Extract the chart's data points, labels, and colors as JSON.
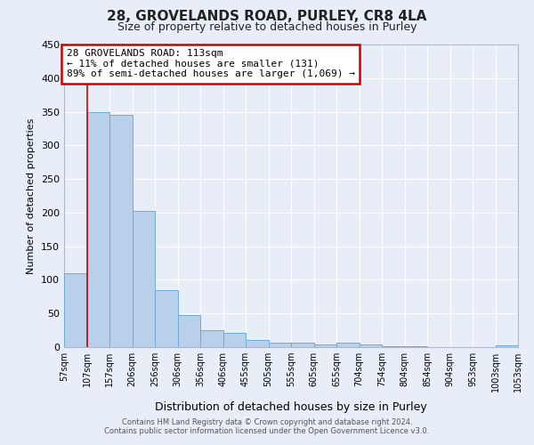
{
  "title": "28, GROVELANDS ROAD, PURLEY, CR8 4LA",
  "subtitle": "Size of property relative to detached houses in Purley",
  "bar_values": [
    110,
    350,
    345,
    203,
    85,
    47,
    25,
    21,
    11,
    7,
    6,
    4,
    7,
    4,
    1,
    1,
    0,
    0,
    0,
    3
  ],
  "bin_labels": [
    "57sqm",
    "107sqm",
    "157sqm",
    "206sqm",
    "256sqm",
    "306sqm",
    "356sqm",
    "406sqm",
    "455sqm",
    "505sqm",
    "555sqm",
    "605sqm",
    "655sqm",
    "704sqm",
    "754sqm",
    "804sqm",
    "854sqm",
    "904sqm",
    "953sqm",
    "1003sqm",
    "1053sqm"
  ],
  "bar_color": "#b8d0ea",
  "bar_edge_color": "#6aaed6",
  "ylabel": "Number of detached properties",
  "xlabel": "Distribution of detached houses by size in Purley",
  "ylim": [
    0,
    450
  ],
  "yticks": [
    0,
    50,
    100,
    150,
    200,
    250,
    300,
    350,
    400,
    450
  ],
  "property_line_x": 1,
  "property_label": "28 GROVELANDS ROAD: 113sqm",
  "annotation_line1": "← 11% of detached houses are smaller (131)",
  "annotation_line2": "89% of semi-detached houses are larger (1,069) →",
  "annotation_box_color": "#ffffff",
  "annotation_box_edge_color": "#cc0000",
  "vline_color": "#cc0000",
  "footer_line1": "Contains HM Land Registry data © Crown copyright and database right 2024.",
  "footer_line2": "Contains public sector information licensed under the Open Government Licence v3.0.",
  "background_color": "#e8eef8",
  "grid_color": "#ffffff",
  "title_fontsize": 11,
  "subtitle_fontsize": 9,
  "ylabel_fontsize": 8,
  "xlabel_fontsize": 9,
  "tick_fontsize": 7,
  "footer_fontsize": 6,
  "annotation_fontsize": 8
}
